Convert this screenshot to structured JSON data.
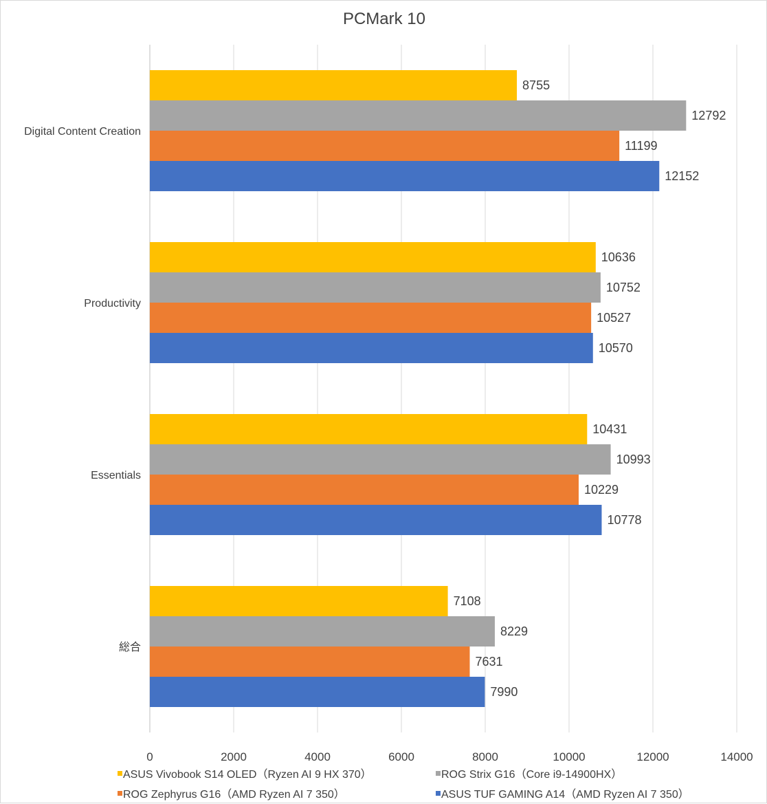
{
  "chart_data": {
    "type": "bar",
    "orientation": "horizontal",
    "title": "PCMark 10",
    "categories": [
      "Digital Content Creation",
      "Productivity",
      "Essentials",
      "総合"
    ],
    "series": [
      {
        "name": "ASUS Vivobook S14 OLED（Ryzen AI 9 HX 370）",
        "color": "#ffc000",
        "values": [
          8755,
          10636,
          10431,
          7108
        ]
      },
      {
        "name": "ROG Strix G16（Core i9-14900HX）",
        "color": "#a5a5a5",
        "values": [
          12792,
          10752,
          10993,
          8229
        ]
      },
      {
        "name": "ROG Zephyrus G16（AMD Ryzen AI 7 350）",
        "color": "#ed7d31",
        "values": [
          11199,
          10527,
          10229,
          7631
        ]
      },
      {
        "name": "ASUS TUF GAMING A14（AMD Ryzen AI 7 350）",
        "color": "#4472c4",
        "values": [
          12152,
          10570,
          10778,
          7990
        ]
      }
    ],
    "xlim": [
      0,
      14000
    ],
    "xticks": [
      0,
      2000,
      4000,
      6000,
      8000,
      10000,
      12000,
      14000
    ],
    "grid": true,
    "legend_position": "bottom",
    "data_labels": true
  }
}
